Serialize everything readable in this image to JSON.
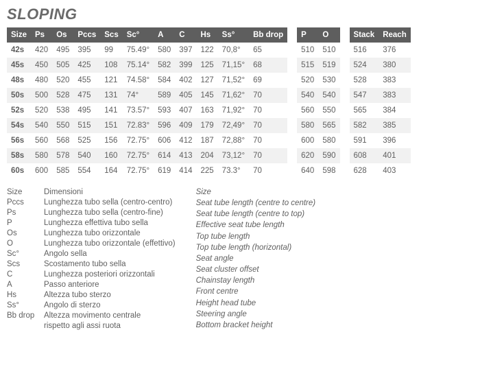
{
  "title": "SLOPING",
  "main_table": {
    "headers": [
      "Size",
      "Ps",
      "Os",
      "Pccs",
      "Scs",
      "Sc°",
      "A",
      "C",
      "Hs",
      "Ss°",
      "Bb drop"
    ],
    "rows": [
      [
        "42s",
        "420",
        "495",
        "395",
        "99",
        "75.49°",
        "580",
        "397",
        "122",
        "70,8°",
        "65"
      ],
      [
        "45s",
        "450",
        "505",
        "425",
        "108",
        "75.14°",
        "582",
        "399",
        "125",
        "71,15°",
        "68"
      ],
      [
        "48s",
        "480",
        "520",
        "455",
        "121",
        "74.58°",
        "584",
        "402",
        "127",
        "71,52°",
        "69"
      ],
      [
        "50s",
        "500",
        "528",
        "475",
        "131",
        "74°",
        "589",
        "405",
        "145",
        "71,62°",
        "70"
      ],
      [
        "52s",
        "520",
        "538",
        "495",
        "141",
        "73.57°",
        "593",
        "407",
        "163",
        "71,92°",
        "70"
      ],
      [
        "54s",
        "540",
        "550",
        "515",
        "151",
        "72.83°",
        "596",
        "409",
        "179",
        "72,49°",
        "70"
      ],
      [
        "56s",
        "560",
        "568",
        "525",
        "156",
        "72.75°",
        "606",
        "412",
        "187",
        "72,88°",
        "70"
      ],
      [
        "58s",
        "580",
        "578",
        "540",
        "160",
        "72.75°",
        "614",
        "413",
        "204",
        "73,12°",
        "70"
      ],
      [
        "60s",
        "600",
        "585",
        "554",
        "164",
        "72.75°",
        "619",
        "414",
        "225",
        "73.3°",
        "70"
      ]
    ]
  },
  "po_table": {
    "headers": [
      "P",
      "O"
    ],
    "rows": [
      [
        "510",
        "510"
      ],
      [
        "515",
        "519"
      ],
      [
        "520",
        "530"
      ],
      [
        "540",
        "540"
      ],
      [
        "560",
        "550"
      ],
      [
        "580",
        "565"
      ],
      [
        "600",
        "580"
      ],
      [
        "620",
        "590"
      ],
      [
        "640",
        "598"
      ]
    ]
  },
  "sr_table": {
    "headers": [
      "Stack",
      "Reach"
    ],
    "rows": [
      [
        "516",
        "376"
      ],
      [
        "524",
        "380"
      ],
      [
        "528",
        "383"
      ],
      [
        "547",
        "383"
      ],
      [
        "565",
        "384"
      ],
      [
        "582",
        "385"
      ],
      [
        "591",
        "396"
      ],
      [
        "608",
        "401"
      ],
      [
        "628",
        "403"
      ]
    ]
  },
  "glossary": {
    "it": [
      {
        "k": "Size",
        "v": "Dimensioni"
      },
      {
        "k": "Pccs",
        "v": "Lunghezza tubo sella (centro-centro)"
      },
      {
        "k": "Ps",
        "v": "Lunghezza tubo sella (centro-fine)"
      },
      {
        "k": "P",
        "v": "Lunghezza effettiva tubo sella"
      },
      {
        "k": "Os",
        "v": "Lunghezza tubo orizzontale"
      },
      {
        "k": "O",
        "v": "Lunghezza tubo orizzontale (effettivo)"
      },
      {
        "k": "Sc°",
        "v": "Angolo sella"
      },
      {
        "k": "Scs",
        "v": "Scostamento tubo sella"
      },
      {
        "k": "C",
        "v": "Lunghezza posteriori orizzontali"
      },
      {
        "k": "A",
        "v": "Passo anteriore"
      },
      {
        "k": "Hs",
        "v": "Altezza tubo sterzo"
      },
      {
        "k": "Ss°",
        "v": "Angolo di sterzo"
      },
      {
        "k": "Bb drop",
        "v": "Altezza movimento centrale"
      },
      {
        "k": "",
        "v": "rispetto agli assi ruota"
      }
    ],
    "en": [
      {
        "v": "Size"
      },
      {
        "v": "Seat tube length (centre to centre)"
      },
      {
        "v": "Seat tube length (centre to top)"
      },
      {
        "v": "Effective seat tube length"
      },
      {
        "v": "Top tube length"
      },
      {
        "v": "Top tube length (horizontal)"
      },
      {
        "v": "Seat angle"
      },
      {
        "v": "Seat cluster offset"
      },
      {
        "v": "Chainstay length"
      },
      {
        "v": "Front centre"
      },
      {
        "v": "Height head tube"
      },
      {
        "v": "Steering angle"
      },
      {
        "v": "Bottom bracket height"
      }
    ]
  }
}
